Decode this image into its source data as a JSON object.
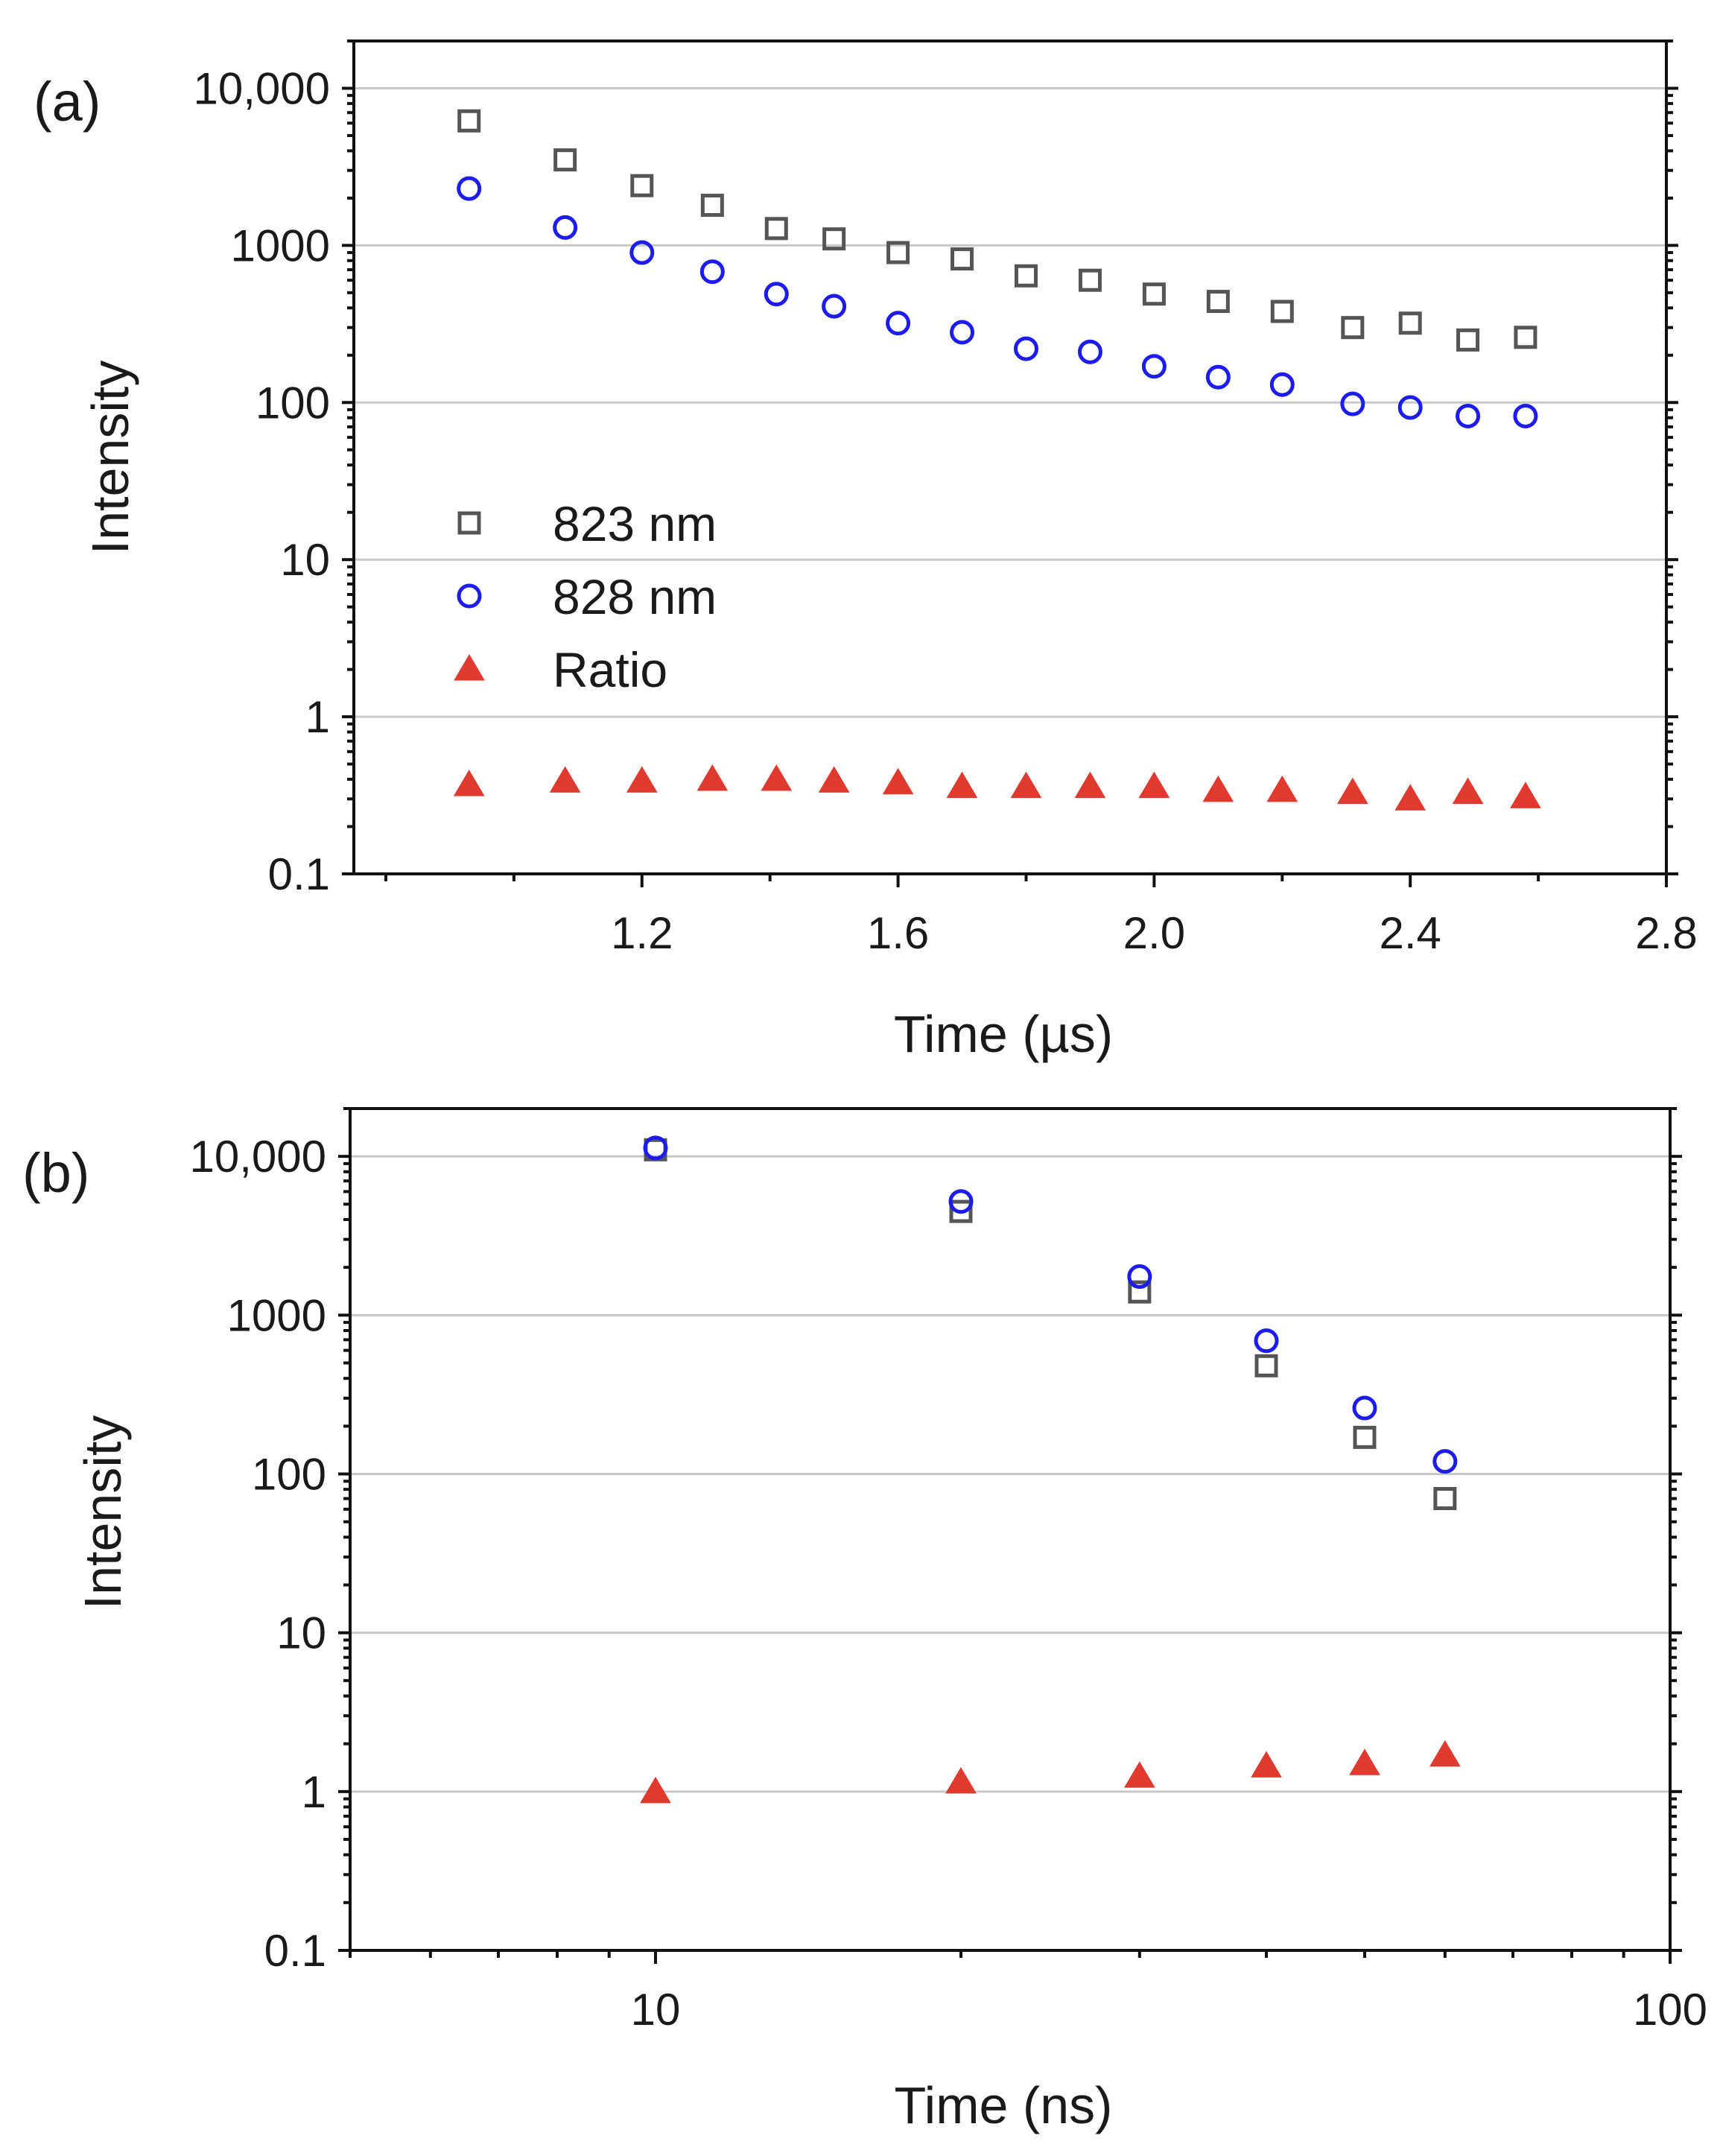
{
  "chart_data": [
    {
      "type": "scatter",
      "panel_label": "(a)",
      "xlabel": "Time (µs)",
      "ylabel": "Intensity",
      "xscale": "linear",
      "yscale": "log",
      "xlim": [
        0.75,
        2.8
      ],
      "ylim": [
        0.1,
        20000
      ],
      "xticks": [
        1.2,
        1.6,
        2.0,
        2.4,
        2.8
      ],
      "xtick_labels": [
        "1.2",
        "1.6",
        "2.0",
        "2.4",
        "2.8"
      ],
      "yticks": [
        0.1,
        1,
        10,
        100,
        1000,
        10000
      ],
      "ytick_labels": [
        "0.1",
        "1",
        "10",
        "100",
        "1000",
        "10,000"
      ],
      "grid": "horizontal",
      "legend_position": "middle-left",
      "x": [
        0.93,
        1.08,
        1.2,
        1.31,
        1.41,
        1.5,
        1.6,
        1.7,
        1.8,
        1.9,
        2.0,
        2.1,
        2.2,
        2.31,
        2.4,
        2.49,
        2.58
      ],
      "series": [
        {
          "name": "823 nm",
          "marker": "square",
          "color": "#555555",
          "values": [
            6200,
            3500,
            2400,
            1800,
            1280,
            1100,
            900,
            820,
            640,
            600,
            490,
            440,
            380,
            300,
            320,
            250,
            260
          ]
        },
        {
          "name": "828 nm",
          "marker": "circle",
          "color": "#1c1cf0",
          "values": [
            2300,
            1300,
            900,
            680,
            490,
            410,
            320,
            280,
            220,
            210,
            170,
            145,
            130,
            98,
            93,
            82,
            82
          ]
        },
        {
          "name": "Ratio",
          "marker": "triangle",
          "color": "#e03a2e",
          "values": [
            0.37,
            0.39,
            0.39,
            0.4,
            0.4,
            0.39,
            0.38,
            0.36,
            0.36,
            0.36,
            0.36,
            0.34,
            0.34,
            0.33,
            0.3,
            0.33,
            0.31
          ]
        }
      ]
    },
    {
      "type": "scatter",
      "panel_label": "(b)",
      "xlabel": "Time (ns)",
      "ylabel": "Intensity",
      "xscale": "log",
      "yscale": "log",
      "xlim": [
        5,
        100
      ],
      "ylim": [
        0.1,
        20000
      ],
      "xticks": [
        10,
        100
      ],
      "xtick_labels": [
        "10",
        "100"
      ],
      "yticks": [
        0.1,
        1,
        10,
        100,
        1000,
        10000
      ],
      "ytick_labels": [
        "0.1",
        "1",
        "10",
        "100",
        "1000",
        "10,000"
      ],
      "grid": "horizontal",
      "x": [
        10,
        20,
        30,
        40,
        50,
        60
      ],
      "series": [
        {
          "name": "823 nm",
          "marker": "square",
          "color": "#555555",
          "values": [
            11000,
            4500,
            1400,
            480,
            170,
            70
          ]
        },
        {
          "name": "828 nm",
          "marker": "circle",
          "color": "#1c1cf0",
          "values": [
            11300,
            5200,
            1750,
            690,
            260,
            120
          ]
        },
        {
          "name": "Ratio",
          "marker": "triangle",
          "color": "#e03a2e",
          "values": [
            1.0,
            1.15,
            1.25,
            1.45,
            1.5,
            1.7
          ]
        }
      ]
    }
  ]
}
